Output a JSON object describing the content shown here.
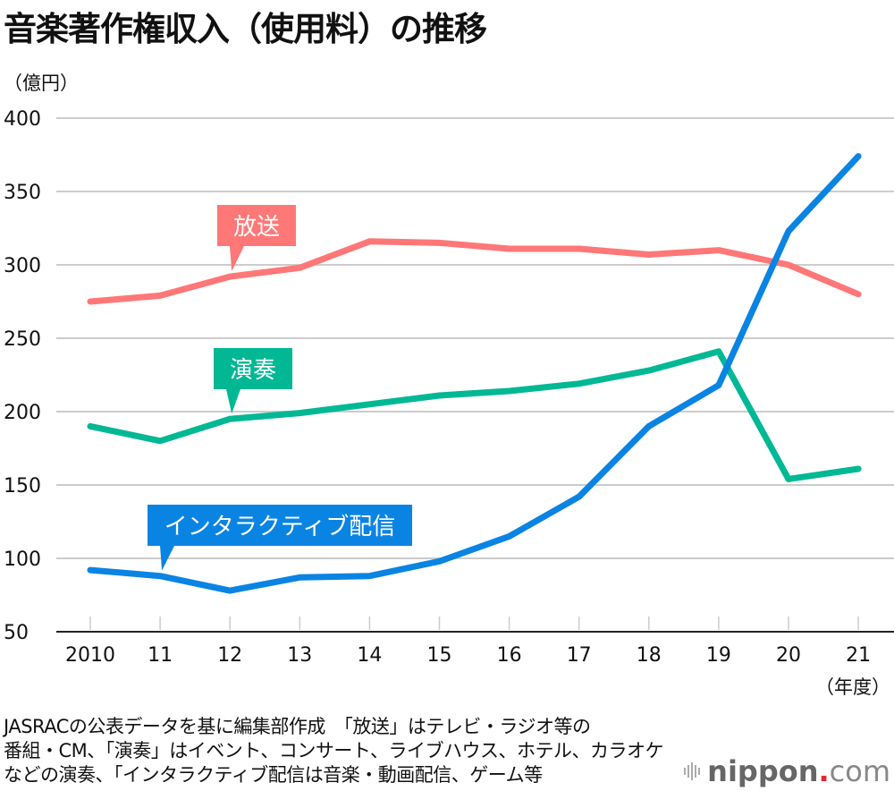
{
  "title": "音楽著作権収入（使用料）の推移",
  "chart_data": {
    "type": "line",
    "title": "音楽著作権収入（使用料）の推移",
    "ylabel": "（億円）",
    "xlabel": "（年度）",
    "ylim": [
      50,
      400
    ],
    "yticks": [
      50,
      100,
      150,
      200,
      250,
      300,
      350,
      400
    ],
    "grid": true,
    "categories": [
      "2010",
      "11",
      "12",
      "13",
      "14",
      "15",
      "16",
      "17",
      "18",
      "19",
      "20",
      "21"
    ],
    "series": [
      {
        "name": "放送",
        "color": "#ff7777",
        "values": [
          275,
          279,
          292,
          298,
          316,
          315,
          311,
          311,
          307,
          310,
          300,
          280
        ],
        "label_anchor_index": 2
      },
      {
        "name": "演奏",
        "color": "#00b894",
        "values": [
          190,
          180,
          195,
          199,
          205,
          211,
          214,
          219,
          228,
          241,
          154,
          161
        ],
        "label_anchor_index": 2
      },
      {
        "name": "インタラクティブ配信",
        "color": "#0a84e3",
        "values": [
          92,
          88,
          78,
          87,
          88,
          98,
          115,
          142,
          190,
          218,
          323,
          374
        ],
        "label_anchor_index": 1
      }
    ]
  },
  "footer": {
    "lines": [
      "JASRACの公表データを基に編集部作成　「放送」はテレビ・ラジオ等の",
      "番組・CM、「演奏」はイベント、コンサート、ライブハウス、ホテル、カラオケ",
      "などの演奏、「インタラクティブ配信は音楽・動画配信、ゲーム等"
    ]
  },
  "logo": {
    "name": "nippon",
    "dot": ".",
    "suffix": "com"
  }
}
